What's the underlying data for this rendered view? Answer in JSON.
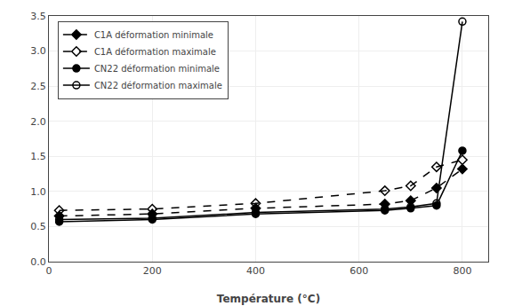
{
  "chart_data": {
    "type": "line",
    "xlabel": "Température (°C)",
    "xlim": [
      0,
      850
    ],
    "ylim": [
      0,
      3.5
    ],
    "xticks": [
      0,
      200,
      400,
      600,
      800
    ],
    "yticks": [
      {
        "value": 0,
        "label": "0.0"
      },
      0.5,
      {
        "value": 1.0,
        "label": "1.0"
      },
      1.5,
      {
        "value": 2.0,
        "label": "2.0"
      },
      2.5,
      {
        "value": 3.0,
        "label": "3.0"
      },
      3.5
    ],
    "grid": true,
    "legend": "upper left",
    "series": [
      {
        "name": "C1A déformation minimale",
        "color": "#000000",
        "line_style": "dashed",
        "marker": "diamond",
        "x": [
          20,
          200,
          400,
          650,
          700,
          750,
          800
        ],
        "values": [
          0.65,
          0.68,
          0.76,
          0.82,
          0.87,
          1.05,
          1.32
        ]
      },
      {
        "name": "C1A déformation maximale",
        "color": "#000000",
        "line_style": "dashed",
        "marker": "diamond-open",
        "x": [
          20,
          200,
          400,
          650,
          700,
          750,
          800
        ],
        "values": [
          0.73,
          0.75,
          0.83,
          1.01,
          1.08,
          1.35,
          1.45
        ]
      },
      {
        "name": "CN22 déformation minimale",
        "color": "#000000",
        "line_style": "solid",
        "marker": "circle",
        "x": [
          20,
          200,
          400,
          650,
          700,
          750,
          800
        ],
        "values": [
          0.57,
          0.6,
          0.68,
          0.73,
          0.76,
          0.8,
          1.58
        ]
      },
      {
        "name": "CN22 déformation maximale",
        "color": "#000000",
        "line_style": "solid",
        "marker": "circle-open",
        "x": [
          20,
          200,
          400,
          650,
          700,
          750,
          800
        ],
        "values": [
          0.6,
          0.62,
          0.7,
          0.75,
          0.78,
          0.83,
          3.42
        ]
      }
    ]
  }
}
